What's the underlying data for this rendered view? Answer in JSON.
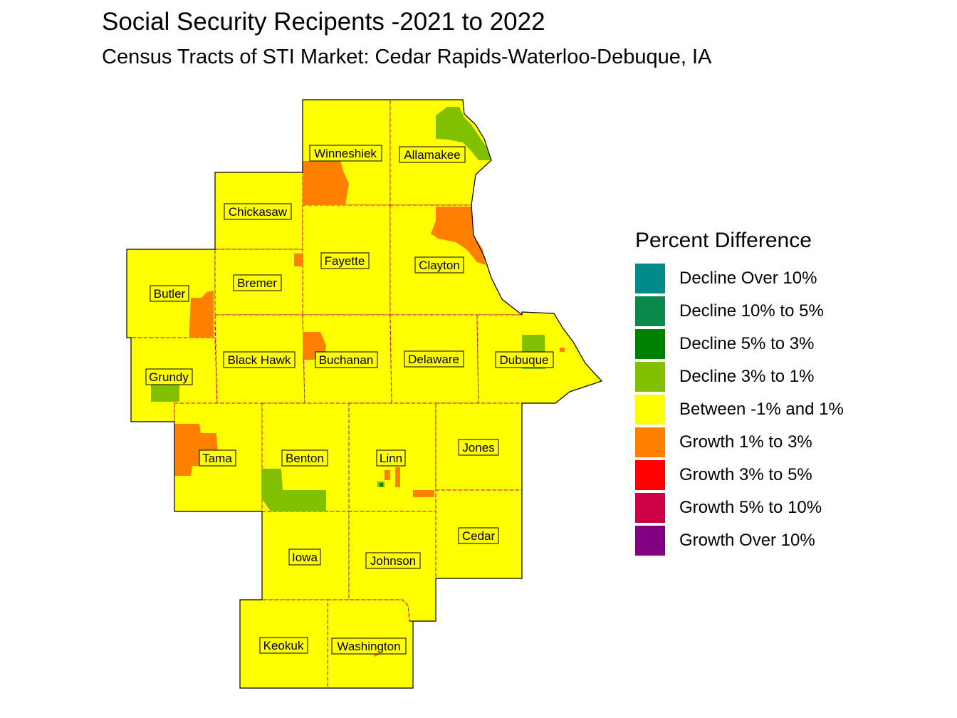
{
  "title": "Social Security Recipents -2021 to 2022",
  "subtitle": "Census Tracts of STI Market: Cedar Rapids-Waterloo-Debuque, IA",
  "legend": {
    "title": "Percent Difference",
    "items": [
      {
        "label": "Decline Over 10%",
        "color": "#008b8b"
      },
      {
        "label": "Decline 10% to 5%",
        "color": "#0a8a4a"
      },
      {
        "label": "Decline 5% to 3%",
        "color": "#008000"
      },
      {
        "label": "Decline 3% to 1%",
        "color": "#80c000"
      },
      {
        "label": "Between -1% and 1%",
        "color": "#ffff00"
      },
      {
        "label": "Growth 1% to 3%",
        "color": "#ff8000"
      },
      {
        "label": "Growth 3% to 5%",
        "color": "#ff0000"
      },
      {
        "label": "Growth 5% to 10%",
        "color": "#cc0044"
      },
      {
        "label": "Growth Over 10%",
        "color": "#800080"
      }
    ]
  },
  "counties": {
    "winneshiek": "Winneshiek",
    "allamakee": "Allamakee",
    "chickasaw": "Chickasaw",
    "fayette": "Fayette",
    "clayton": "Clayton",
    "butler": "Butler",
    "bremer": "Bremer",
    "grundy": "Grundy",
    "black_hawk": "Black Hawk",
    "buchanan": "Buchanan",
    "delaware": "Delaware",
    "dubuque": "Dubuque",
    "tama": "Tama",
    "benton": "Benton",
    "linn": "Linn",
    "jones": "Jones",
    "iowa": "Iowa",
    "johnson": "Johnson",
    "cedar": "Cedar",
    "keokuk": "Keokuk",
    "washington": "Washington"
  }
}
